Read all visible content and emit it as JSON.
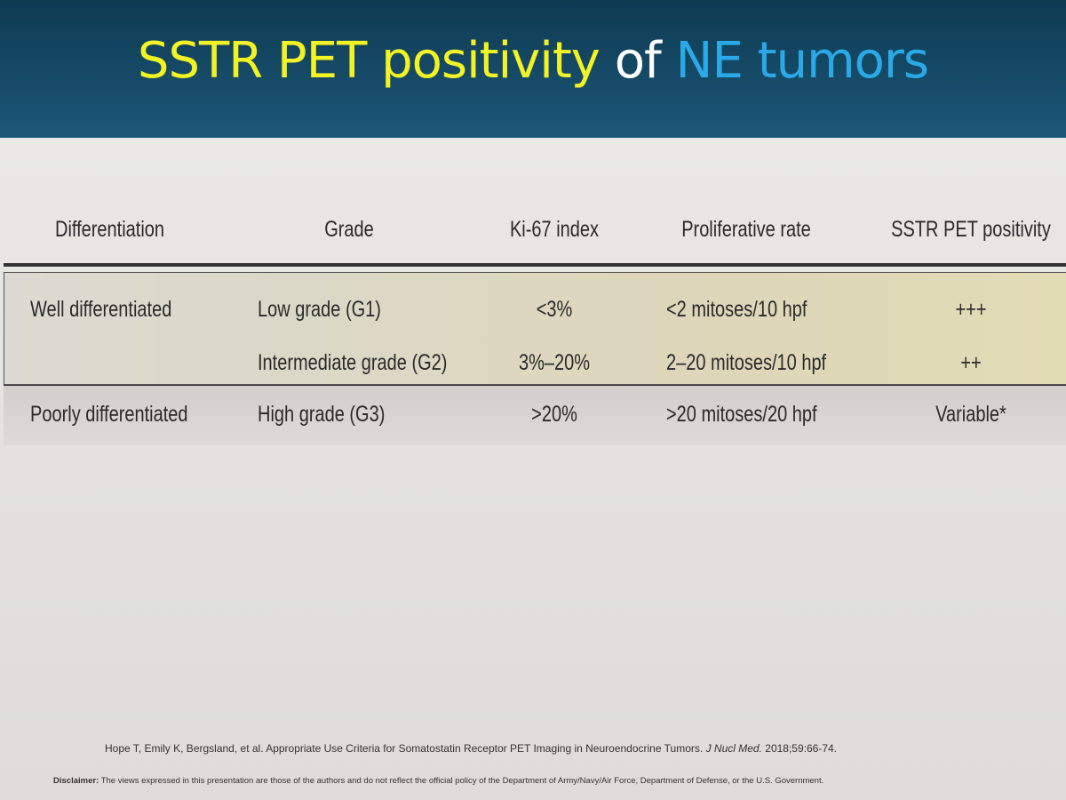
{
  "header": {
    "title": {
      "part1": "SSTR PET positivity",
      "part2": "of",
      "part3": "NE tumors"
    }
  },
  "table": {
    "columns": [
      "Differentiation",
      "Grade",
      "Ki-67 index",
      "Proliferative rate",
      "SSTR PET positivity"
    ],
    "groups": [
      {
        "differentiation": "Well differentiated",
        "rows": [
          [
            "Low grade (G1)",
            "<3%",
            "<2 mitoses/10 hpf",
            "+++"
          ],
          [
            "Intermediate grade (G2)",
            "3%–20%",
            "2–20 mitoses/10 hpf",
            "++"
          ]
        ]
      },
      {
        "differentiation": "Poorly differentiated",
        "rows": [
          [
            "High grade (G3)",
            ">20%",
            ">20 mitoses/20 hpf",
            "Variable*"
          ]
        ]
      }
    ]
  },
  "citation": {
    "before": "Hope T, Emily K, Bergsland, et al. Appropriate Use Criteria for Somatostatin Receptor PET Imaging in Neuroendocrine Tumors.",
    "journal": "J Nucl Med.",
    "after": "2018;59:66-74."
  },
  "disclaimer": {
    "label": "Disclaimer:",
    "text": "The views expressed in this presentation are those of the authors and do not reflect the official policy of the Department of Army/Navy/Air Force, Department of Defense, or the U.S. Government."
  }
}
